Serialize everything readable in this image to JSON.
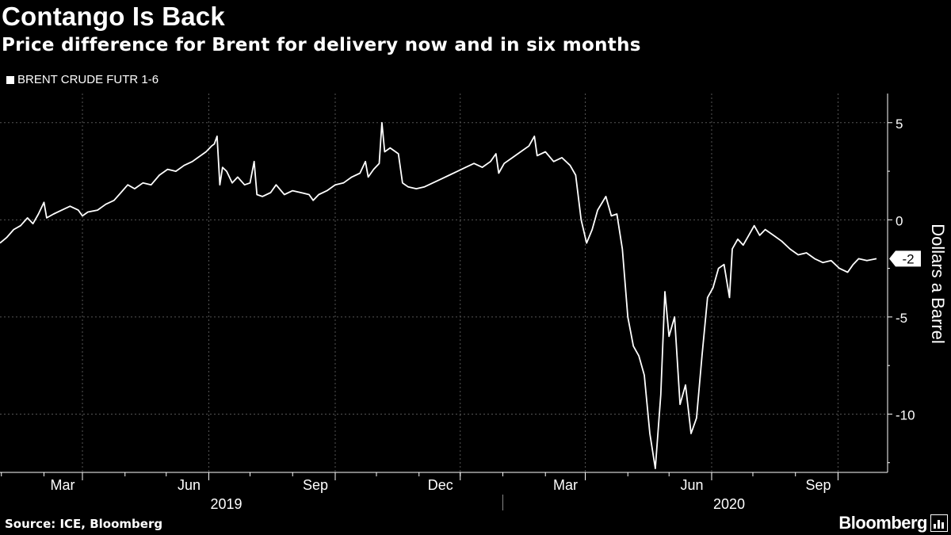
{
  "title": "Contango Is Back",
  "subtitle": "Price difference for Brent for delivery now and in six months",
  "legend_label": "BRENT CRUDE FUTR   1-6",
  "source": "Source: ICE, Bloomberg",
  "brand": "Bloomberg",
  "colors": {
    "background": "#000000",
    "line": "#ffffff",
    "grid": "#555555"
  },
  "chart_data": {
    "type": "line",
    "title": "Contango Is Back",
    "subtitle": "Price difference for Brent for delivery now and in six months",
    "ylabel": "Dollars a Barrel",
    "ylim": [
      -13,
      6.5
    ],
    "yticks": [
      5,
      0,
      -5,
      -10
    ],
    "ytick_labels": [
      "5",
      "0",
      "-5",
      "-10"
    ],
    "last_value_label": "-2",
    "grid": true,
    "legend_position": "top-left",
    "x_ticks": [
      {
        "label": "Mar",
        "date": "2019-03-01"
      },
      {
        "label": "Jun",
        "date": "2019-06-01"
      },
      {
        "label": "Sep",
        "date": "2019-09-01"
      },
      {
        "label": "Dec",
        "date": "2019-12-01"
      },
      {
        "label": "Mar",
        "date": "2020-03-01"
      },
      {
        "label": "Jun",
        "date": "2020-06-01"
      },
      {
        "label": "Sep",
        "date": "2020-09-01"
      }
    ],
    "year_labels": [
      {
        "label": "2019",
        "date": "2019-07-01"
      },
      {
        "label": "2020",
        "date": "2020-07-01"
      }
    ],
    "xlim": [
      "2018-12-31",
      "2020-09-29"
    ],
    "series": [
      {
        "name": "BRENT CRUDE FUTR   1-6",
        "points": [
          [
            "2018-12-31",
            -1.2
          ],
          [
            "2019-01-05",
            -0.9
          ],
          [
            "2019-01-10",
            -0.5
          ],
          [
            "2019-01-15",
            -0.3
          ],
          [
            "2019-01-20",
            0.1
          ],
          [
            "2019-01-24",
            -0.2
          ],
          [
            "2019-01-28",
            0.3
          ],
          [
            "2019-02-01",
            0.9
          ],
          [
            "2019-02-03",
            0.1
          ],
          [
            "2019-02-08",
            0.3
          ],
          [
            "2019-02-14",
            0.5
          ],
          [
            "2019-02-20",
            0.7
          ],
          [
            "2019-02-26",
            0.5
          ],
          [
            "2019-03-01",
            0.2
          ],
          [
            "2019-03-05",
            0.4
          ],
          [
            "2019-03-12",
            0.5
          ],
          [
            "2019-03-18",
            0.8
          ],
          [
            "2019-03-24",
            1.0
          ],
          [
            "2019-03-29",
            1.4
          ],
          [
            "2019-04-03",
            1.8
          ],
          [
            "2019-04-08",
            1.6
          ],
          [
            "2019-04-14",
            1.9
          ],
          [
            "2019-04-20",
            1.8
          ],
          [
            "2019-04-26",
            2.3
          ],
          [
            "2019-05-02",
            2.6
          ],
          [
            "2019-05-08",
            2.5
          ],
          [
            "2019-05-14",
            2.8
          ],
          [
            "2019-05-20",
            3.0
          ],
          [
            "2019-05-24",
            3.2
          ],
          [
            "2019-05-30",
            3.5
          ],
          [
            "2019-06-03",
            3.8
          ],
          [
            "2019-06-05",
            3.9
          ],
          [
            "2019-06-07",
            4.3
          ],
          [
            "2019-06-09",
            1.8
          ],
          [
            "2019-06-11",
            2.7
          ],
          [
            "2019-06-14",
            2.5
          ],
          [
            "2019-06-18",
            1.9
          ],
          [
            "2019-06-22",
            2.2
          ],
          [
            "2019-06-27",
            1.8
          ],
          [
            "2019-07-01",
            1.9
          ],
          [
            "2019-07-04",
            3.0
          ],
          [
            "2019-07-06",
            1.3
          ],
          [
            "2019-07-10",
            1.2
          ],
          [
            "2019-07-16",
            1.4
          ],
          [
            "2019-07-20",
            1.8
          ],
          [
            "2019-07-26",
            1.3
          ],
          [
            "2019-08-01",
            1.5
          ],
          [
            "2019-08-07",
            1.4
          ],
          [
            "2019-08-13",
            1.3
          ],
          [
            "2019-08-16",
            1.0
          ],
          [
            "2019-08-20",
            1.3
          ],
          [
            "2019-08-26",
            1.5
          ],
          [
            "2019-09-01",
            1.8
          ],
          [
            "2019-09-07",
            1.9
          ],
          [
            "2019-09-13",
            2.2
          ],
          [
            "2019-09-19",
            2.4
          ],
          [
            "2019-09-23",
            3.0
          ],
          [
            "2019-09-25",
            2.2
          ],
          [
            "2019-09-29",
            2.6
          ],
          [
            "2019-10-03",
            2.9
          ],
          [
            "2019-10-05",
            5.0
          ],
          [
            "2019-10-07",
            3.5
          ],
          [
            "2019-10-11",
            3.7
          ],
          [
            "2019-10-17",
            3.4
          ],
          [
            "2019-10-20",
            1.9
          ],
          [
            "2019-10-24",
            1.7
          ],
          [
            "2019-10-30",
            1.6
          ],
          [
            "2019-11-05",
            1.7
          ],
          [
            "2019-11-11",
            1.9
          ],
          [
            "2019-11-17",
            2.1
          ],
          [
            "2019-11-23",
            2.3
          ],
          [
            "2019-11-29",
            2.5
          ],
          [
            "2019-12-05",
            2.7
          ],
          [
            "2019-12-11",
            2.9
          ],
          [
            "2019-12-17",
            2.7
          ],
          [
            "2019-12-23",
            3.0
          ],
          [
            "2019-12-27",
            3.4
          ],
          [
            "2019-12-29",
            2.4
          ],
          [
            "2020-01-02",
            2.9
          ],
          [
            "2020-01-08",
            3.2
          ],
          [
            "2020-01-14",
            3.5
          ],
          [
            "2020-01-20",
            3.8
          ],
          [
            "2020-01-24",
            4.3
          ],
          [
            "2020-01-26",
            3.3
          ],
          [
            "2020-02-01",
            3.5
          ],
          [
            "2020-02-07",
            3.0
          ],
          [
            "2020-02-13",
            3.2
          ],
          [
            "2020-02-19",
            2.8
          ],
          [
            "2020-02-23",
            2.3
          ],
          [
            "2020-02-27",
            0.0
          ],
          [
            "2020-03-02",
            -1.2
          ],
          [
            "2020-03-06",
            -0.5
          ],
          [
            "2020-03-10",
            0.5
          ],
          [
            "2020-03-16",
            1.2
          ],
          [
            "2020-03-20",
            0.2
          ],
          [
            "2020-03-24",
            0.3
          ],
          [
            "2020-03-28",
            -1.5
          ],
          [
            "2020-04-01",
            -5.0
          ],
          [
            "2020-04-05",
            -6.5
          ],
          [
            "2020-04-09",
            -7.0
          ],
          [
            "2020-04-13",
            -8.0
          ],
          [
            "2020-04-17",
            -11.0
          ],
          [
            "2020-04-21",
            -12.8
          ],
          [
            "2020-04-25",
            -9.0
          ],
          [
            "2020-04-28",
            -3.7
          ],
          [
            "2020-05-01",
            -6.0
          ],
          [
            "2020-05-05",
            -5.0
          ],
          [
            "2020-05-09",
            -9.5
          ],
          [
            "2020-05-13",
            -8.5
          ],
          [
            "2020-05-17",
            -11.0
          ],
          [
            "2020-05-21",
            -10.2
          ],
          [
            "2020-05-25",
            -7.0
          ],
          [
            "2020-05-29",
            -4.0
          ],
          [
            "2020-06-02",
            -3.5
          ],
          [
            "2020-06-06",
            -2.5
          ],
          [
            "2020-06-10",
            -2.3
          ],
          [
            "2020-06-14",
            -4.0
          ],
          [
            "2020-06-16",
            -1.5
          ],
          [
            "2020-06-20",
            -1.0
          ],
          [
            "2020-06-24",
            -1.3
          ],
          [
            "2020-06-28",
            -0.8
          ],
          [
            "2020-07-02",
            -0.3
          ],
          [
            "2020-07-06",
            -0.8
          ],
          [
            "2020-07-10",
            -0.5
          ],
          [
            "2020-07-16",
            -0.8
          ],
          [
            "2020-07-22",
            -1.1
          ],
          [
            "2020-07-28",
            -1.5
          ],
          [
            "2020-08-03",
            -1.8
          ],
          [
            "2020-08-09",
            -1.7
          ],
          [
            "2020-08-15",
            -2.0
          ],
          [
            "2020-08-21",
            -2.2
          ],
          [
            "2020-08-27",
            -2.1
          ],
          [
            "2020-09-02",
            -2.5
          ],
          [
            "2020-09-08",
            -2.7
          ],
          [
            "2020-09-12",
            -2.3
          ],
          [
            "2020-09-16",
            -2.0
          ],
          [
            "2020-09-22",
            -2.1
          ],
          [
            "2020-09-29",
            -2.0
          ]
        ]
      }
    ]
  }
}
